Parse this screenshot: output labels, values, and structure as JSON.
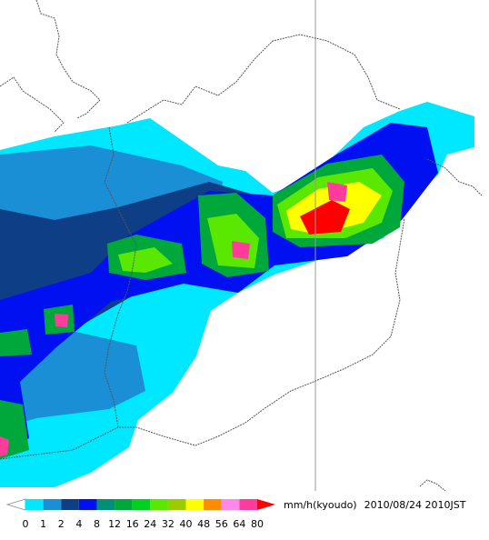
{
  "legend": {
    "unit": "mm/h(kyoudo)",
    "timestamp": "2010/08/24 2010JST",
    "ticks": [
      0,
      1,
      2,
      4,
      8,
      12,
      16,
      24,
      32,
      40,
      48,
      56,
      64,
      80
    ],
    "colors": [
      "#00e8ff",
      "#1a8fd6",
      "#0e3f86",
      "#0010f0",
      "#00907a",
      "#00a83c",
      "#00d020",
      "#5ae800",
      "#9ccc00",
      "#ffff00",
      "#ff8c00",
      "#ff88e8",
      "#ff3c9c"
    ],
    "under_color": "#ffffff",
    "over_color": "#ff0000"
  }
}
